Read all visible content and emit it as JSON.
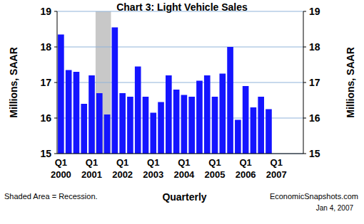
{
  "chart_data": {
    "type": "bar",
    "title": "Chart 3: Light Vehicle Sales",
    "x_label": "Quarterly",
    "y_label": "Millions, SAAR",
    "categories": [
      "Q1 2000",
      null,
      null,
      null,
      "Q1 2001",
      null,
      null,
      null,
      "Q1 2002",
      null,
      null,
      null,
      "Q1 2003",
      null,
      null,
      null,
      "Q1 2004",
      null,
      null,
      null,
      "Q1 2005",
      null,
      null,
      null,
      "Q1 2006",
      null,
      null,
      null,
      "Q1 2007",
      null,
      null,
      null
    ],
    "values": [
      18.35,
      17.35,
      17.3,
      16.4,
      17.2,
      16.7,
      16.1,
      18.55,
      16.7,
      16.6,
      17.45,
      16.6,
      16.15,
      16.45,
      17.2,
      16.8,
      16.65,
      16.6,
      17.05,
      17.2,
      16.6,
      17.25,
      18.0,
      15.95,
      16.9,
      16.3,
      16.6,
      16.25,
      null,
      null,
      null,
      null
    ],
    "color": "#1414ff",
    "shaded": {
      "from": 5,
      "to": 6
    },
    "annotations": [
      "Shaded Area = Recession.",
      "EconomicSnapshots.com",
      "Jan 4, 2007"
    ],
    "ylim": [
      15,
      19
    ],
    "yticks": [
      15,
      16,
      17,
      18,
      19
    ],
    "grid": true
  }
}
